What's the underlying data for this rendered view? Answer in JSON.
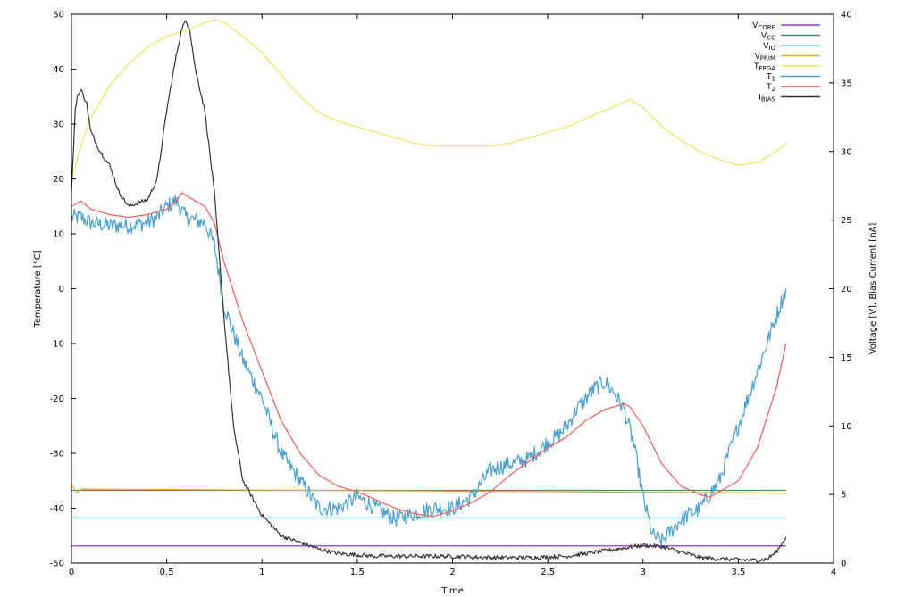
{
  "chart_data": {
    "type": "line",
    "xlabel": "Time",
    "ylabel_left": "Temperature [°C]",
    "ylabel_right": "Voltage [V], Bias Current [nA]",
    "xlim": [
      0,
      4
    ],
    "ylim_left": [
      -50,
      50
    ],
    "ylim_right": [
      0,
      40
    ],
    "x_ticks": [
      "0",
      "0.5",
      "1",
      "1.5",
      "2",
      "2.5",
      "3",
      "3.5",
      "4"
    ],
    "y_ticks_left": [
      "-50",
      "-40",
      "-30",
      "-20",
      "-10",
      "0",
      "10",
      "20",
      "30",
      "40",
      "50"
    ],
    "y_ticks_right": [
      "0",
      "5",
      "10",
      "15",
      "20",
      "25",
      "30",
      "35",
      "40"
    ],
    "legend_position": "top-right",
    "series": [
      {
        "name": "V_CORE",
        "label_base": "V",
        "label_sub": "CORE",
        "axis": "right",
        "color": "#9b30d9",
        "noise": 0,
        "x": [
          0,
          3.75
        ],
        "y": [
          1.25,
          1.25
        ]
      },
      {
        "name": "V_CC",
        "label_base": "V",
        "label_sub": "CC",
        "axis": "right",
        "color": "#2e9e5a",
        "noise": 0,
        "x": [
          0,
          3.75
        ],
        "y": [
          5.3,
          5.3
        ]
      },
      {
        "name": "V_IO",
        "label_base": "V",
        "label_sub": "IO",
        "axis": "right",
        "color": "#7fd4e8",
        "noise": 0,
        "x": [
          0,
          3.75
        ],
        "y": [
          3.3,
          3.3
        ]
      },
      {
        "name": "V_PRIM",
        "label_base": "V",
        "label_sub": "PRIM",
        "axis": "right",
        "color": "#e8a33d",
        "noise": 0,
        "x": [
          0,
          0.02,
          0.03,
          0.05,
          3.75
        ],
        "y": [
          5.7,
          5.3,
          5.1,
          5.4,
          5.1
        ]
      },
      {
        "name": "T_FPGA",
        "label_base": "T",
        "label_sub": "FPGA",
        "axis": "left",
        "color": "#f2e25e",
        "noise": 0,
        "x": [
          0,
          0.05,
          0.1,
          0.2,
          0.3,
          0.4,
          0.5,
          0.6,
          0.7,
          0.75,
          0.8,
          0.9,
          1.0,
          1.1,
          1.2,
          1.3,
          1.4,
          1.5,
          1.6,
          1.7,
          1.8,
          1.9,
          2.0,
          2.1,
          2.2,
          2.3,
          2.4,
          2.5,
          2.6,
          2.7,
          2.8,
          2.9,
          2.93,
          3.0,
          3.1,
          3.2,
          3.3,
          3.4,
          3.5,
          3.6,
          3.7,
          3.75
        ],
        "y": [
          20,
          26,
          31,
          37,
          41,
          44,
          46,
          47,
          48.5,
          49,
          48.5,
          46,
          43,
          39,
          35,
          32,
          30.5,
          29.5,
          28.5,
          27.5,
          26.5,
          26,
          26,
          26,
          26,
          26.5,
          27.5,
          28.5,
          29.5,
          31,
          32.5,
          34,
          34.5,
          33,
          29.5,
          27,
          25,
          23.5,
          22.5,
          23,
          25,
          26.5
        ]
      },
      {
        "name": "T_1",
        "label_base": "T",
        "label_sub": "1",
        "axis": "left",
        "color": "#4a9fcf",
        "noise": 1.5,
        "x": [
          0,
          0.05,
          0.1,
          0.2,
          0.3,
          0.4,
          0.45,
          0.5,
          0.55,
          0.6,
          0.7,
          0.75,
          0.8,
          0.85,
          0.9,
          1.0,
          1.1,
          1.2,
          1.3,
          1.4,
          1.5,
          1.6,
          1.7,
          1.8,
          1.9,
          2.0,
          2.1,
          2.2,
          2.3,
          2.4,
          2.5,
          2.55,
          2.6,
          2.65,
          2.7,
          2.75,
          2.8,
          2.85,
          2.9,
          2.95,
          3.0,
          3.05,
          3.1,
          3.2,
          3.3,
          3.4,
          3.5,
          3.6,
          3.7,
          3.75
        ],
        "y": [
          13,
          13,
          12,
          11.5,
          11.5,
          12,
          13,
          15,
          16,
          13,
          12,
          8,
          -3,
          -8,
          -13,
          -20,
          -30,
          -35,
          -40,
          -40,
          -38,
          -40,
          -42,
          -41,
          -40,
          -40,
          -38,
          -33,
          -32,
          -31,
          -28,
          -27,
          -25,
          -22,
          -20,
          -18,
          -17,
          -19,
          -22,
          -28,
          -38,
          -45,
          -46,
          -42,
          -40,
          -35,
          -25,
          -15,
          -5,
          0
        ]
      },
      {
        "name": "T_2",
        "label_base": "T",
        "label_sub": "2",
        "axis": "left",
        "color": "#ef5c5c",
        "noise": 0,
        "x": [
          0,
          0.05,
          0.1,
          0.2,
          0.3,
          0.4,
          0.5,
          0.55,
          0.58,
          0.6,
          0.7,
          0.75,
          0.8,
          0.9,
          1.0,
          1.1,
          1.2,
          1.3,
          1.4,
          1.5,
          1.6,
          1.7,
          1.8,
          1.9,
          2.0,
          2.1,
          2.2,
          2.3,
          2.4,
          2.5,
          2.6,
          2.7,
          2.8,
          2.9,
          2.93,
          3.0,
          3.1,
          3.2,
          3.3,
          3.35,
          3.4,
          3.5,
          3.6,
          3.7,
          3.75
        ],
        "y": [
          15,
          16,
          14.5,
          13.5,
          13,
          13.5,
          14.5,
          16,
          17.5,
          17,
          15,
          12,
          5,
          -6,
          -15,
          -24,
          -30,
          -34,
          -36,
          -37,
          -38.5,
          -40,
          -41,
          -41.5,
          -40.5,
          -39,
          -37,
          -34,
          -31.5,
          -29,
          -27,
          -24,
          -22,
          -21,
          -21.5,
          -25,
          -32,
          -36,
          -37.5,
          -38,
          -37,
          -35,
          -29,
          -18,
          -10
        ]
      },
      {
        "name": "I_BIAS",
        "label_base": "I",
        "label_sub": "BIAS",
        "axis": "right",
        "color": "#333333",
        "noise": 0.15,
        "x": [
          0,
          0.02,
          0.03,
          0.05,
          0.08,
          0.1,
          0.15,
          0.2,
          0.25,
          0.3,
          0.4,
          0.45,
          0.5,
          0.55,
          0.58,
          0.6,
          0.62,
          0.65,
          0.7,
          0.75,
          0.8,
          0.85,
          0.9,
          1.0,
          1.1,
          1.2,
          1.3,
          1.4,
          1.5,
          1.6,
          1.8,
          2.0,
          2.2,
          2.4,
          2.6,
          2.8,
          2.9,
          3.0,
          3.1,
          3.2,
          3.3,
          3.4,
          3.5,
          3.6,
          3.65,
          3.7,
          3.75
        ],
        "y": [
          27,
          33,
          34,
          34.5,
          33.5,
          31.5,
          30,
          29,
          27,
          26,
          26.5,
          28,
          33,
          37,
          39,
          39.5,
          39,
          36,
          33,
          27,
          18,
          10,
          6,
          3.5,
          2,
          1.5,
          1,
          0.7,
          0.6,
          0.5,
          0.5,
          0.5,
          0.4,
          0.4,
          0.5,
          0.9,
          1.1,
          1.3,
          1.2,
          0.8,
          0.4,
          0.3,
          0.25,
          0.2,
          0.3,
          0.8,
          1.9
        ]
      }
    ]
  }
}
